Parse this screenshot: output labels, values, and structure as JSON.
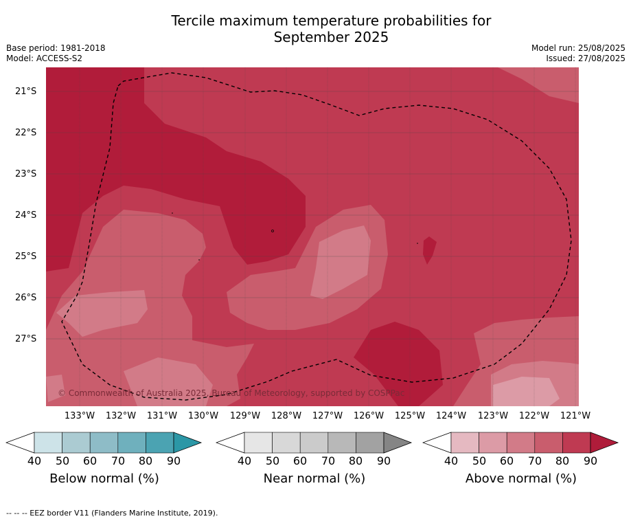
{
  "title_line1": "Tercile maximum temperature probabilities for",
  "title_line2": "September 2025",
  "base_period": "Base period: 1981-2018",
  "model": "Model: ACCESS-S2",
  "model_run": "Model run: 25/08/2025",
  "issued": "Issued: 27/08/2025",
  "lat_labels": [
    "21°S",
    "22°S",
    "23°S",
    "24°S",
    "25°S",
    "26°S",
    "27°S"
  ],
  "lon_labels": [
    "133°W",
    "132°W",
    "131°W",
    "130°W",
    "129°W",
    "128°W",
    "127°W",
    "126°W",
    "125°W",
    "124°W",
    "123°W",
    "122°W",
    "121°W"
  ],
  "copyright": "© Commonwealth of Australia 2025, Bureau of Meteorology, supported by COSPPac",
  "footer": "-- -- -- EEZ border V11 (Flanders Marine Institute, 2019).",
  "colorbars": [
    {
      "label": "Below normal (%)",
      "ticks": [
        "40",
        "50",
        "60",
        "70",
        "80",
        "90"
      ],
      "colors": [
        "#cde3e8",
        "#abcbd2",
        "#8ebcc7",
        "#6fb0bd",
        "#4ba3b2",
        "#2b97a6"
      ]
    },
    {
      "label": "Near normal (%)",
      "ticks": [
        "40",
        "50",
        "60",
        "70",
        "80",
        "90"
      ],
      "colors": [
        "#e6e6e6",
        "#d8d8d8",
        "#cbcbcb",
        "#b8b8b8",
        "#a2a2a2",
        "#858585"
      ]
    },
    {
      "label": "Above normal (%)",
      "ticks": [
        "40",
        "50",
        "60",
        "70",
        "80",
        "90"
      ],
      "colors": [
        "#e5b9c1",
        "#dc9ba6",
        "#d27b88",
        "#c95d6d",
        "#bf3a52",
        "#af1c3a"
      ]
    }
  ]
}
